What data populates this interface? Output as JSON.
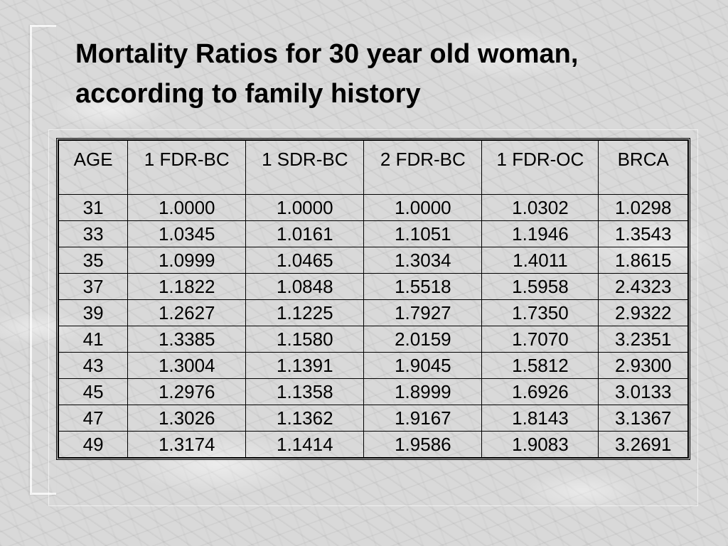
{
  "slide": {
    "title_line1": "Mortality Ratios for 30 year old woman,",
    "title_line2": "according to family history"
  },
  "table": {
    "headers": [
      "AGE",
      "1 FDR-BC",
      "1 SDR-BC",
      "2 FDR-BC",
      "1 FDR-OC",
      "BRCA"
    ],
    "rows": [
      [
        "31",
        "1.0000",
        "1.0000",
        "1.0000",
        "1.0302",
        "1.0298"
      ],
      [
        "33",
        "1.0345",
        "1.0161",
        "1.1051",
        "1.1946",
        "1.3543"
      ],
      [
        "35",
        "1.0999",
        "1.0465",
        "1.3034",
        "1.4011",
        "1.8615"
      ],
      [
        "37",
        "1.1822",
        "1.0848",
        "1.5518",
        "1.5958",
        "2.4323"
      ],
      [
        "39",
        "1.2627",
        "1.1225",
        "1.7927",
        "1.7350",
        "2.9322"
      ],
      [
        "41",
        "1.3385",
        "1.1580",
        "2.0159",
        "1.7070",
        "3.2351"
      ],
      [
        "43",
        "1.3004",
        "1.1391",
        "1.9045",
        "1.5812",
        "2.9300"
      ],
      [
        "45",
        "1.2976",
        "1.1358",
        "1.8999",
        "1.6926",
        "3.0133"
      ],
      [
        "47",
        "1.3026",
        "1.1362",
        "1.9167",
        "1.8143",
        "3.1367"
      ],
      [
        "49",
        "1.3174",
        "1.1414",
        "1.9586",
        "1.9083",
        "3.2691"
      ]
    ]
  }
}
